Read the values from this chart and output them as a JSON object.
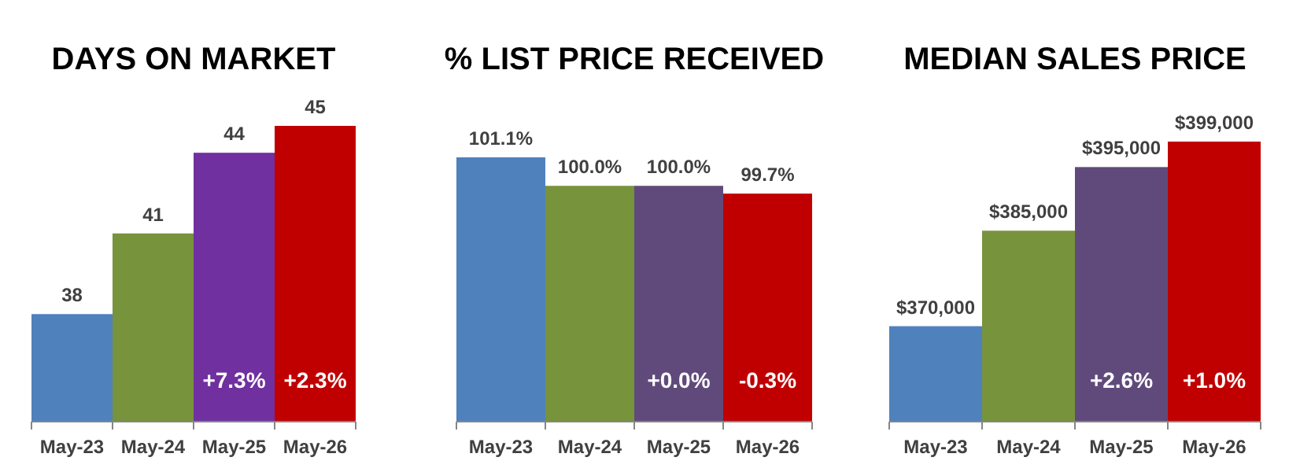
{
  "chart_data": [
    {
      "type": "bar",
      "title": "DAYS ON MARKET",
      "categories": [
        "May-23",
        "May-24",
        "May-25",
        "May-26"
      ],
      "values": [
        38,
        41,
        44,
        45
      ],
      "colors": [
        "#4f81bd",
        "#77933c",
        "#7030a0",
        "#c00000"
      ],
      "ylim": [
        34,
        45
      ],
      "tick_labels": "x",
      "data_labels": true,
      "annotations": [
        "+7.3%",
        "+2.3%"
      ]
    },
    {
      "type": "bar",
      "title": "% LIST PRICE RECEIVED",
      "categories": [
        "May-23",
        "May-24",
        "May-25",
        "May-26"
      ],
      "values": [
        101.1,
        100.0,
        100.0,
        99.7
      ],
      "colors": [
        "#4f81bd",
        "#77933c",
        "#604a7b",
        "#c00000"
      ],
      "ylim": [
        90.9,
        101.1
      ],
      "tick_labels": "x",
      "value_labels": [
        "101.1%",
        "100.0%",
        "100.0%",
        "99.7%"
      ],
      "annotations": [
        "+0.0%",
        "-0.3%"
      ]
    },
    {
      "type": "bar",
      "title": "MEDIAN SALES PRICE",
      "categories": [
        "May-23",
        "May-24",
        "May-25",
        "May-26"
      ],
      "values": [
        370000,
        385000,
        395000,
        399000
      ],
      "colors": [
        "#4f81bd",
        "#77933c",
        "#604a7b",
        "#c00000"
      ],
      "ylim": [
        355000,
        399000
      ],
      "tick_labels": "x",
      "value_labels": [
        "$370,000",
        "$385,000",
        "$395,000",
        "$399,000"
      ],
      "annotations": [
        "+2.6%",
        "+1.0%"
      ]
    }
  ]
}
